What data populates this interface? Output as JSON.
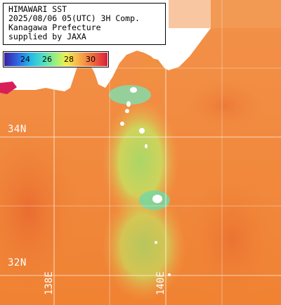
{
  "title": {
    "line1": "HIMAWARI SST",
    "line2": "2025/08/06 05(UTC) 3H Comp.",
    "line3": "Kanagawa Prefecture",
    "line4": "supplied by JAXA"
  },
  "colorbar": {
    "ticks": [
      "24",
      "26",
      "28",
      "30"
    ]
  },
  "grid": {
    "lat_labels": [
      "34N",
      "32N"
    ],
    "lon_labels": [
      "138E",
      "140E"
    ]
  },
  "colors": {
    "warm_sea": "#f08a3a",
    "cool_sea": "#9fe070",
    "land": "#ffffff",
    "grid": "#ffffff"
  }
}
